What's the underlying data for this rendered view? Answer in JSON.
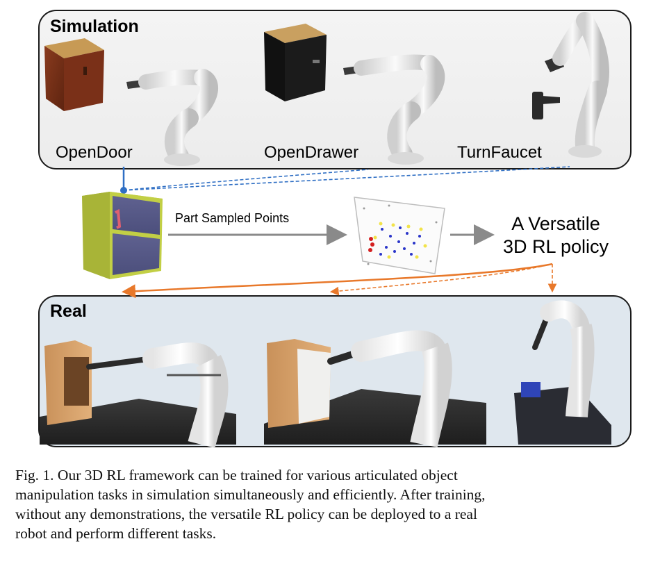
{
  "simulation": {
    "title": "Simulation",
    "tasks": [
      "OpenDoor",
      "OpenDrawer",
      "TurnFaucet"
    ]
  },
  "middle": {
    "arrow_label": "Part Sampled Points",
    "policy_lines": [
      "A Versatile",
      "3D RL policy"
    ]
  },
  "real": {
    "title": "Real"
  },
  "caption": {
    "lines": [
      "Fig. 1.  Our 3D RL framework can be trained for various articulated object",
      "manipulation tasks in simulation simultaneously and efficiently. After training,",
      "without any demonstrations, the versatile RL policy can be deployed to a real",
      "robot and perform different tasks."
    ]
  },
  "colors": {
    "sim_connector": "#2f6fc4",
    "real_connector": "#e8782a",
    "gray_arrow": "#8a8a8a"
  }
}
